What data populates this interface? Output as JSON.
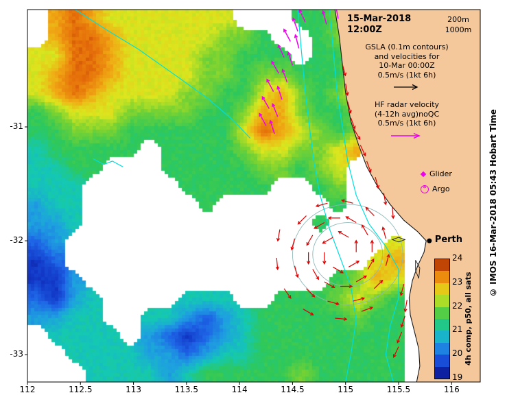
{
  "figure": {
    "title_date": "15-Mar-2018",
    "title_time": "12:00Z",
    "depth_200": "200m",
    "depth_1000": "1000m",
    "gsla_legend": {
      "line1": "GSLA (0.1m contours)",
      "line2": "and velocities for",
      "line3": "10-Mar 00:00Z",
      "line4": "0.5m/s (1kt 6h)"
    },
    "hf_legend": {
      "line1": "HF radar velocity",
      "line2": "(4-12h avg)noQC",
      "line3": "0.5m/s (1kt 6h)"
    },
    "glider_label": "Glider",
    "argo_label": "Argo",
    "credit": "© IMOS 16-Mar-2018 05:43 Hobart Time"
  },
  "chart_data": {
    "type": "heatmap",
    "xlabel": "",
    "ylabel": "",
    "x_ticks": [
      "112",
      "112.5",
      "113",
      "113.5",
      "114",
      "114.5",
      "115",
      "115.5",
      "116"
    ],
    "y_ticks": [
      "-31",
      "-32",
      "-33"
    ],
    "lon_range": [
      112,
      116.27
    ],
    "lat_range": [
      -33.24,
      -29.97
    ],
    "colorbar": {
      "min": 19,
      "max": 24,
      "ticks": [
        24,
        23,
        22,
        21,
        20,
        19
      ],
      "label": "4h comp, p50, all sats"
    },
    "colormap_stops": [
      [
        19,
        "#0a0a78"
      ],
      [
        19.5,
        "#1238c8"
      ],
      [
        20,
        "#1e64e6"
      ],
      [
        20.5,
        "#1ea0e0"
      ],
      [
        21,
        "#14c8b4"
      ],
      [
        21.5,
        "#2ec85a"
      ],
      [
        22,
        "#78d232"
      ],
      [
        22.5,
        "#dce61e"
      ],
      [
        23,
        "#f0aa14"
      ],
      [
        23.5,
        "#e66e0a"
      ],
      [
        24,
        "#9b1c00"
      ]
    ],
    "sst_grid": {
      "units": "degC",
      "cols": 24,
      "rows": 20,
      "values": [
        [
          null,
          23,
          23.5,
          23,
          22.5,
          22.5,
          22.5,
          22.5,
          22.5,
          22.5,
          22.5,
          null,
          null,
          null,
          21.5,
          21.5,
          22,
          23,
          23.5,
          null,
          null,
          null,
          null,
          null
        ],
        [
          null,
          23,
          23.5,
          23.5,
          23,
          22.5,
          22.5,
          22.5,
          22.5,
          22.5,
          22,
          22,
          21.5,
          null,
          null,
          21.5,
          22,
          23,
          23.5,
          null,
          null,
          null,
          null,
          null
        ],
        [
          22.5,
          22.5,
          23.5,
          23.5,
          23,
          22.5,
          22.5,
          22.5,
          22.5,
          22,
          22,
          21.5,
          21.5,
          21.5,
          null,
          21.5,
          21.5,
          22.5,
          23.5,
          null,
          null,
          null,
          null,
          null
        ],
        [
          22.5,
          23,
          23.5,
          23.5,
          23,
          22.5,
          22.5,
          22.5,
          22.5,
          22,
          22,
          21.5,
          22,
          22,
          21.5,
          21.5,
          21.5,
          22.5,
          23.5,
          null,
          null,
          null,
          null,
          null
        ],
        [
          22.5,
          23,
          23.5,
          23,
          22.5,
          22.5,
          22.5,
          22.5,
          22,
          22,
          21.5,
          21.5,
          22.5,
          23,
          22,
          21.5,
          22,
          22.5,
          null,
          null,
          null,
          null,
          null,
          null
        ],
        [
          21.5,
          22,
          22.5,
          22.5,
          22.5,
          22,
          22,
          22,
          22,
          21.5,
          21.5,
          22,
          23,
          23,
          22,
          21.5,
          21.5,
          22,
          null,
          null,
          null,
          null,
          null,
          null
        ],
        [
          21.5,
          21.5,
          22,
          22,
          22,
          21.5,
          21.5,
          21.5,
          21.5,
          21.5,
          21.5,
          22.5,
          23.5,
          23,
          22.5,
          22,
          21.5,
          22,
          null,
          null,
          null,
          null,
          null,
          null
        ],
        [
          21,
          21.5,
          21.5,
          21.5,
          21.5,
          21.5,
          null,
          21.5,
          21.5,
          21.5,
          21.5,
          22,
          22.5,
          22.5,
          22,
          22,
          22.5,
          23,
          null,
          null,
          null,
          null,
          null,
          null
        ],
        [
          21,
          21,
          21.5,
          21.5,
          null,
          null,
          null,
          21.5,
          21.5,
          21.5,
          21.5,
          21.5,
          22,
          22,
          21.5,
          22,
          22.5,
          null,
          null,
          null,
          null,
          null,
          null,
          null
        ],
        [
          21,
          21,
          21,
          null,
          null,
          null,
          null,
          null,
          21.5,
          21.5,
          21.5,
          21.5,
          21.5,
          null,
          null,
          21.5,
          22,
          null,
          null,
          null,
          null,
          null,
          null,
          null
        ],
        [
          20.5,
          21,
          21,
          null,
          null,
          null,
          null,
          null,
          null,
          21.5,
          null,
          null,
          null,
          null,
          null,
          null,
          21.5,
          null,
          null,
          null,
          null,
          null,
          null,
          null
        ],
        [
          20.5,
          20.5,
          21,
          null,
          null,
          null,
          null,
          null,
          null,
          null,
          null,
          null,
          null,
          null,
          null,
          21.5,
          null,
          null,
          null,
          null,
          null,
          null,
          null,
          null
        ],
        [
          20,
          20.5,
          null,
          null,
          null,
          null,
          null,
          null,
          null,
          null,
          null,
          null,
          null,
          null,
          null,
          null,
          null,
          null,
          null,
          22.5,
          null,
          null,
          null,
          null
        ],
        [
          19.5,
          20,
          null,
          null,
          null,
          null,
          null,
          null,
          null,
          null,
          null,
          null,
          null,
          null,
          null,
          null,
          null,
          null,
          22.5,
          23,
          null,
          null,
          null,
          null
        ],
        [
          19.5,
          19.5,
          20.5,
          null,
          null,
          null,
          null,
          null,
          null,
          null,
          null,
          null,
          null,
          null,
          null,
          null,
          21.5,
          22,
          23,
          22.5,
          null,
          null,
          null,
          null
        ],
        [
          20,
          19.5,
          20.5,
          21,
          null,
          null,
          null,
          null,
          21,
          21,
          21,
          null,
          null,
          21.5,
          21.5,
          21.5,
          22,
          22.5,
          22,
          21.5,
          null,
          null,
          null,
          null
        ],
        [
          20.5,
          20.5,
          21,
          21,
          null,
          null,
          21,
          21,
          20.5,
          20,
          20.5,
          21,
          21.5,
          21.5,
          21.5,
          21.5,
          21.5,
          22,
          21.5,
          21.5,
          null,
          null,
          null,
          null
        ],
        [
          null,
          21,
          21,
          21,
          21,
          null,
          20.5,
          20,
          19.5,
          20,
          20.5,
          21,
          21.5,
          21.5,
          21.5,
          21.5,
          21.5,
          21.5,
          21.5,
          21.5,
          null,
          null,
          null,
          null
        ],
        [
          null,
          null,
          21,
          21,
          21,
          21,
          20.5,
          20.5,
          20,
          20.5,
          21,
          21,
          21.5,
          21.5,
          21.5,
          21.5,
          21.5,
          21.5,
          21.5,
          21.5,
          null,
          null,
          null,
          null
        ],
        [
          null,
          null,
          null,
          21,
          21,
          21,
          21,
          20.5,
          21,
          21.5,
          21.5,
          21.5,
          21.5,
          21.5,
          22,
          21.5,
          21.5,
          21.5,
          21.5,
          21.5,
          null,
          null,
          null,
          null
        ]
      ]
    },
    "depth_contours": [
      [
        [
          114.85,
          -29.97
        ],
        [
          114.88,
          -30.3
        ],
        [
          114.92,
          -30.7
        ],
        [
          114.97,
          -31.0
        ],
        [
          115.02,
          -31.3
        ],
        [
          115.1,
          -31.6
        ],
        [
          115.22,
          -31.85
        ],
        [
          115.38,
          -32.05
        ],
        [
          115.5,
          -32.25
        ],
        [
          115.5,
          -32.5
        ],
        [
          115.42,
          -32.75
        ],
        [
          115.38,
          -33.0
        ],
        [
          115.45,
          -33.24
        ]
      ],
      [
        [
          114.55,
          -29.97
        ],
        [
          114.58,
          -30.3
        ],
        [
          114.62,
          -30.7
        ],
        [
          114.66,
          -31.0
        ],
        [
          114.7,
          -31.3
        ],
        [
          114.76,
          -31.6
        ],
        [
          114.85,
          -31.9
        ],
        [
          114.95,
          -32.15
        ],
        [
          115.05,
          -32.4
        ],
        [
          115.1,
          -32.7
        ],
        [
          115.05,
          -33.0
        ],
        [
          115.0,
          -33.24
        ]
      ],
      [
        [
          112.45,
          -29.97
        ],
        [
          112.75,
          -30.15
        ],
        [
          113.05,
          -30.32
        ],
        [
          113.4,
          -30.55
        ],
        [
          113.7,
          -30.75
        ],
        [
          113.95,
          -30.95
        ],
        [
          114.1,
          -31.1
        ]
      ],
      [
        [
          112.62,
          -31.28
        ],
        [
          112.72,
          -31.33
        ],
        [
          112.8,
          -31.3
        ],
        [
          112.9,
          -31.35
        ]
      ]
    ],
    "gsla_contours": [
      {
        "center": [
          115.02,
          -32.12
        ],
        "rx": 0.33,
        "ry": 0.28
      },
      {
        "center": [
          115.02,
          -32.12
        ],
        "rx": 0.52,
        "ry": 0.44
      }
    ],
    "coastline": [
      [
        114.9,
        -29.97
      ],
      [
        114.94,
        -30.2
      ],
      [
        114.97,
        -30.45
      ],
      [
        115.0,
        -30.7
      ],
      [
        115.05,
        -30.95
      ],
      [
        115.12,
        -31.15
      ],
      [
        115.2,
        -31.35
      ],
      [
        115.3,
        -31.52
      ],
      [
        115.42,
        -31.68
      ],
      [
        115.55,
        -31.82
      ],
      [
        115.68,
        -31.92
      ],
      [
        115.76,
        -32.0
      ],
      [
        115.74,
        -32.1
      ],
      [
        115.68,
        -32.22
      ],
      [
        115.63,
        -32.35
      ],
      [
        115.6,
        -32.5
      ],
      [
        115.61,
        -32.65
      ],
      [
        115.65,
        -32.8
      ],
      [
        115.69,
        -32.95
      ],
      [
        115.7,
        -33.1
      ],
      [
        115.67,
        -33.24
      ]
    ],
    "islands": [
      [
        [
          115.44,
          -31.99
        ],
        [
          115.5,
          -31.97
        ],
        [
          115.56,
          -31.99
        ],
        [
          115.5,
          -32.01
        ],
        [
          115.44,
          -31.99
        ]
      ],
      [
        [
          115.66,
          -32.17
        ],
        [
          115.7,
          -32.24
        ],
        [
          115.69,
          -32.33
        ],
        [
          115.66,
          -32.26
        ],
        [
          115.66,
          -32.17
        ]
      ]
    ],
    "velocity_arrows": {
      "length_deg": {
        "gsla": 0.11,
        "hf_radar": 0.13
      },
      "gsla": [
        [
          115.1,
          -32.1,
          90
        ],
        [
          115.03,
          -31.97,
          150
        ],
        [
          114.88,
          -31.97,
          210
        ],
        [
          114.8,
          -32.1,
          270
        ],
        [
          114.88,
          -32.23,
          330
        ],
        [
          115.03,
          -32.23,
          30
        ],
        [
          115.25,
          -32.1,
          90
        ],
        [
          115.21,
          -31.95,
          120
        ],
        [
          115.1,
          -31.84,
          150
        ],
        [
          114.95,
          -31.8,
          180
        ],
        [
          114.8,
          -31.84,
          210
        ],
        [
          114.69,
          -31.95,
          240
        ],
        [
          114.65,
          -32.1,
          270
        ],
        [
          114.69,
          -32.25,
          300
        ],
        [
          114.8,
          -32.36,
          330
        ],
        [
          114.95,
          -32.4,
          0
        ],
        [
          115.1,
          -32.36,
          30
        ],
        [
          115.21,
          -32.25,
          60
        ],
        [
          115.38,
          -31.98,
          105
        ],
        [
          115.27,
          -31.78,
          135
        ],
        [
          115.07,
          -31.67,
          165
        ],
        [
          114.83,
          -31.67,
          195
        ],
        [
          114.63,
          -31.78,
          225
        ],
        [
          114.52,
          -31.98,
          255
        ],
        [
          114.52,
          -32.22,
          285
        ],
        [
          114.63,
          -32.42,
          315
        ],
        [
          114.83,
          -32.53,
          345
        ],
        [
          115.07,
          -32.53,
          15
        ],
        [
          115.27,
          -32.42,
          45
        ],
        [
          115.38,
          -32.22,
          75
        ],
        [
          114.38,
          -31.9,
          260
        ],
        [
          114.35,
          -32.15,
          275
        ],
        [
          114.42,
          -32.42,
          305
        ],
        [
          114.6,
          -32.6,
          330
        ],
        [
          114.9,
          -32.68,
          355
        ],
        [
          115.15,
          -32.62,
          20
        ],
        [
          115.08,
          -31.02,
          300
        ],
        [
          115.14,
          -31.16,
          295
        ],
        [
          115.2,
          -31.3,
          290
        ],
        [
          115.28,
          -31.44,
          285
        ],
        [
          115.36,
          -31.58,
          280
        ],
        [
          115.44,
          -31.7,
          275
        ],
        [
          115.55,
          -32.38,
          255
        ],
        [
          115.58,
          -32.52,
          260
        ],
        [
          115.56,
          -32.66,
          252
        ],
        [
          115.53,
          -32.8,
          248
        ],
        [
          115.5,
          -32.93,
          245
        ],
        [
          114.97,
          -30.45,
          285
        ],
        [
          115.0,
          -30.62,
          280
        ],
        [
          115.02,
          -30.78,
          285
        ],
        [
          115.05,
          -30.92,
          290
        ]
      ],
      "hf_radar": [
        [
          114.93,
          -30.05,
          100
        ],
        [
          114.82,
          -30.1,
          105
        ],
        [
          114.62,
          -30.08,
          115
        ],
        [
          114.55,
          -30.16,
          110
        ],
        [
          114.48,
          -30.25,
          118
        ],
        [
          114.56,
          -30.31,
          105
        ],
        [
          114.42,
          -30.39,
          115
        ],
        [
          114.5,
          -30.46,
          108
        ],
        [
          114.37,
          -30.53,
          120
        ],
        [
          114.45,
          -30.61,
          110
        ],
        [
          114.32,
          -30.69,
          118
        ],
        [
          114.4,
          -30.76,
          108
        ],
        [
          114.28,
          -30.84,
          120
        ],
        [
          114.36,
          -30.91,
          112
        ],
        [
          114.25,
          -30.99,
          118
        ],
        [
          114.33,
          -31.06,
          108
        ]
      ]
    },
    "city_marker": {
      "name": "Perth",
      "lon": 115.79,
      "lat": -32.0
    },
    "colors": {
      "land": "#f5c89c",
      "coast": "#1a1a1a",
      "depth_contour": "#00dede",
      "gsla_contour": "#8fb8b8",
      "gsla_arrow": "#dd0000",
      "hf_arrow": "#ee00ee",
      "marker": "#ee00ee",
      "no_data": "#ffffff"
    }
  }
}
